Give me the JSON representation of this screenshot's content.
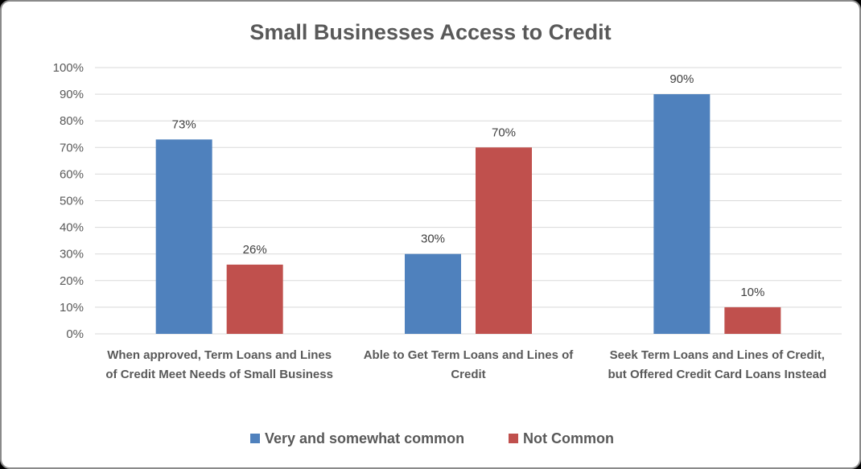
{
  "chart_data": {
    "type": "bar",
    "title": "Small Businesses Access to Credit",
    "categories": [
      [
        "When approved, Term Loans and Lines",
        "of Credit Meet Needs of Small Business"
      ],
      [
        "Able to Get Term Loans and Lines of",
        "Credit"
      ],
      [
        "Seek Term Loans and Lines of Credit,",
        "but Offered Credit Card Loans Instead"
      ]
    ],
    "series": [
      {
        "name": "Very and somewhat common",
        "values": [
          73,
          30,
          90
        ],
        "labels": [
          "73%",
          "30%",
          "90%"
        ],
        "color": "#4f81bd"
      },
      {
        "name": "Not Common",
        "values": [
          26,
          70,
          10
        ],
        "labels": [
          "26%",
          "70%",
          "10%"
        ],
        "color": "#c0504d"
      }
    ],
    "y_ticks": [
      "0%",
      "10%",
      "20%",
      "30%",
      "40%",
      "50%",
      "60%",
      "70%",
      "80%",
      "90%",
      "100%"
    ],
    "ylim": [
      0,
      100
    ],
    "grid": true,
    "legend_position": "bottom"
  }
}
